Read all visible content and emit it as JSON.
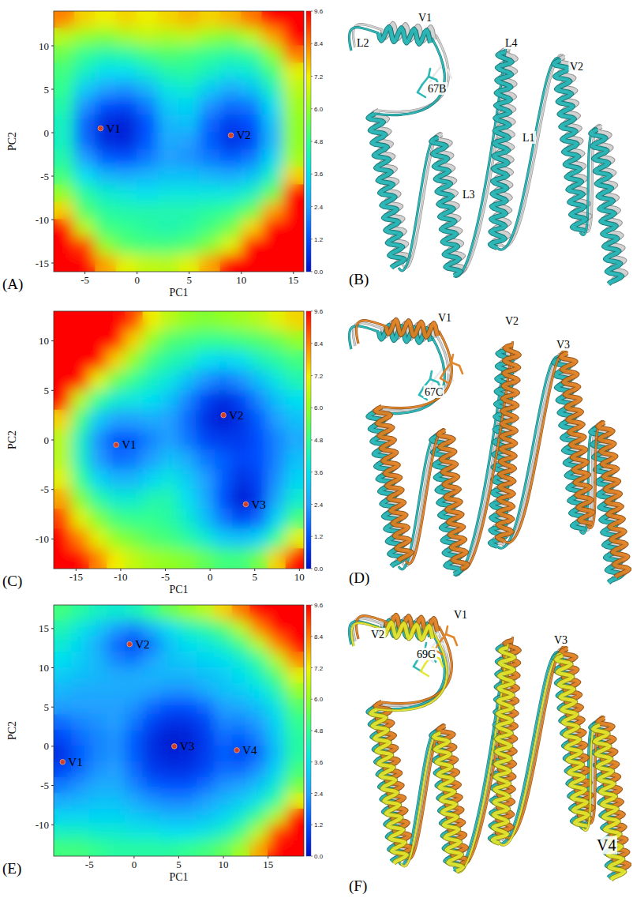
{
  "chart_data": [
    {
      "type": "heatmap",
      "title": "(A)",
      "x_label": "PC1",
      "y_label": "PC2",
      "xlim": [
        -8,
        16
      ],
      "ylim": [
        -16,
        14
      ],
      "xticks": [
        -5,
        0,
        5,
        10,
        15
      ],
      "yticks": [
        -15,
        -10,
        -5,
        0,
        5,
        10
      ],
      "x": [
        -7,
        -5,
        -3,
        -1,
        1,
        3,
        5,
        7,
        9,
        11,
        13,
        15
      ],
      "y": [
        13,
        11,
        9,
        7,
        5,
        3,
        1,
        -1,
        -3,
        -5,
        -7,
        -9,
        -11,
        -13,
        -15
      ],
      "z": [
        [
          8.4,
          7.5,
          7.2,
          7.5,
          7.2,
          7.5,
          7.8,
          7.5,
          7.8,
          8.5,
          9.6,
          9.6
        ],
        [
          6.5,
          6.0,
          5.8,
          6.2,
          6.5,
          6.3,
          6.5,
          6.0,
          5.8,
          6.5,
          8.0,
          9.6
        ],
        [
          5.5,
          4.8,
          4.5,
          4.6,
          5.0,
          5.2,
          5.0,
          4.8,
          4.6,
          4.8,
          6.0,
          8.5
        ],
        [
          5.0,
          4.2,
          3.6,
          3.6,
          4.0,
          4.5,
          4.6,
          4.2,
          3.8,
          4.0,
          5.0,
          7.0
        ],
        [
          4.8,
          3.2,
          2.4,
          2.2,
          2.8,
          3.8,
          4.0,
          3.2,
          2.6,
          3.0,
          4.2,
          6.5
        ],
        [
          4.5,
          2.2,
          1.2,
          1.0,
          1.8,
          3.2,
          3.4,
          2.2,
          1.6,
          1.8,
          3.5,
          6.2
        ],
        [
          4.2,
          1.5,
          0.4,
          0.3,
          1.2,
          2.8,
          3.0,
          1.5,
          0.8,
          1.2,
          3.0,
          6.0
        ],
        [
          4.2,
          1.6,
          0.5,
          0.4,
          1.3,
          2.6,
          2.4,
          1.4,
          0.6,
          1.0,
          2.8,
          6.0
        ],
        [
          4.5,
          2.4,
          1.4,
          1.2,
          1.8,
          2.4,
          2.2,
          1.8,
          1.4,
          1.8,
          3.4,
          6.2
        ],
        [
          5.0,
          3.6,
          2.8,
          2.6,
          2.8,
          3.0,
          3.0,
          2.8,
          2.6,
          3.0,
          4.2,
          7.5
        ],
        [
          6.0,
          4.6,
          4.0,
          3.8,
          3.6,
          3.8,
          3.8,
          3.8,
          3.8,
          4.2,
          5.5,
          9.6
        ],
        [
          7.5,
          5.2,
          4.6,
          4.4,
          4.4,
          4.4,
          4.4,
          4.6,
          4.8,
          5.5,
          8.0,
          9.6
        ],
        [
          9.6,
          6.5,
          5.0,
          4.8,
          4.6,
          4.4,
          4.6,
          5.0,
          5.6,
          7.5,
          9.6,
          9.6
        ],
        [
          9.6,
          9.0,
          6.0,
          5.2,
          5.0,
          5.0,
          5.2,
          5.8,
          7.0,
          9.6,
          9.6,
          9.6
        ],
        [
          9.6,
          9.6,
          8.0,
          7.0,
          6.6,
          6.5,
          7.0,
          8.0,
          9.6,
          9.6,
          9.6,
          9.6
        ]
      ],
      "colorbar_range": [
        0,
        9.6
      ],
      "colorbar_ticks": [
        {
          "value": 0,
          "label": "0.0"
        },
        1.2,
        2.4,
        3.6,
        4.8,
        {
          "value": 6,
          "label": "6.0"
        },
        7.2,
        8.4,
        9.6
      ],
      "annotations": [
        {
          "text": "V1",
          "x": -3.5,
          "y": 0.5
        },
        {
          "text": "V2",
          "x": 9,
          "y": -0.3
        }
      ]
    },
    {
      "type": "heatmap",
      "title": "(C)",
      "x_label": "PC1",
      "y_label": "PC2",
      "xlim": [
        -17.5,
        10.5
      ],
      "ylim": [
        -13,
        13
      ],
      "xticks": [
        -15,
        -10,
        -5,
        0,
        5,
        10
      ],
      "yticks": [
        -10,
        -5,
        0,
        5,
        10
      ],
      "x": [
        -16.5,
        -14.5,
        -12.5,
        -10.5,
        -8.5,
        -6.5,
        -4.5,
        -2.5,
        -0.5,
        1.5,
        3.5,
        5.5,
        7.5,
        9.5
      ],
      "y": [
        12,
        10,
        8,
        6,
        4,
        2,
        0,
        -2,
        -4,
        -6,
        -8,
        -10,
        -12
      ],
      "z": [
        [
          9.6,
          9.6,
          9.6,
          9.6,
          9.0,
          7.2,
          6.5,
          6.0,
          5.8,
          6.0,
          6.2,
          6.5,
          7.0,
          7.5
        ],
        [
          9.6,
          9.6,
          9.6,
          9.6,
          7.5,
          6.0,
          5.2,
          5.0,
          4.8,
          4.8,
          5.0,
          5.2,
          5.5,
          6.0
        ],
        [
          9.6,
          9.6,
          9.6,
          7.5,
          6.0,
          5.0,
          4.5,
          4.2,
          3.6,
          3.4,
          3.6,
          4.2,
          4.6,
          5.0
        ],
        [
          9.6,
          9.6,
          7.0,
          5.5,
          4.8,
          4.2,
          3.8,
          3.0,
          2.2,
          1.8,
          2.2,
          3.0,
          3.8,
          4.4
        ],
        [
          9.6,
          6.5,
          4.8,
          4.0,
          3.8,
          3.6,
          3.0,
          2.0,
          1.0,
          0.5,
          1.0,
          2.0,
          3.0,
          3.6
        ],
        [
          7.5,
          5.0,
          3.2,
          2.4,
          2.4,
          2.6,
          2.4,
          1.6,
          0.6,
          0.2,
          0.6,
          1.4,
          2.4,
          3.0
        ],
        [
          6.5,
          4.2,
          2.2,
          1.3,
          1.4,
          2.0,
          2.4,
          1.8,
          1.0,
          0.8,
          0.8,
          1.2,
          2.0,
          2.6
        ],
        [
          6.5,
          4.2,
          2.4,
          1.6,
          1.8,
          2.4,
          3.0,
          2.6,
          1.8,
          1.4,
          1.0,
          1.2,
          2.0,
          3.0
        ],
        [
          7.0,
          4.8,
          3.4,
          2.8,
          2.8,
          3.4,
          3.8,
          3.2,
          2.4,
          1.4,
          0.6,
          1.0,
          2.2,
          3.4
        ],
        [
          8.0,
          5.8,
          4.6,
          4.0,
          4.0,
          4.4,
          4.4,
          3.6,
          2.6,
          1.2,
          0.2,
          0.8,
          2.6,
          4.0
        ],
        [
          9.0,
          7.0,
          5.8,
          5.0,
          4.8,
          4.8,
          4.6,
          4.0,
          3.0,
          1.8,
          1.0,
          1.6,
          3.4,
          5.0
        ],
        [
          9.6,
          8.4,
          7.0,
          6.0,
          5.6,
          5.2,
          5.0,
          4.6,
          4.0,
          3.2,
          3.0,
          3.4,
          4.8,
          7.0
        ],
        [
          9.6,
          9.6,
          8.4,
          7.2,
          6.6,
          6.2,
          6.0,
          5.8,
          5.4,
          5.0,
          5.0,
          5.6,
          7.5,
          9.6
        ]
      ],
      "colorbar_range": [
        0,
        9.6
      ],
      "colorbar_ticks": [
        {
          "value": 0,
          "label": "0.0"
        },
        1.2,
        2.4,
        3.6,
        4.8,
        {
          "value": 6,
          "label": "6.0"
        },
        7.2,
        8.4,
        9.6
      ],
      "annotations": [
        {
          "text": "V1",
          "x": -10.5,
          "y": -0.5
        },
        {
          "text": "V2",
          "x": 1.5,
          "y": 2.5
        },
        {
          "text": "V3",
          "x": 4,
          "y": -6.5
        }
      ]
    },
    {
      "type": "heatmap",
      "title": "(E)",
      "x_label": "PC1",
      "y_label": "PC2",
      "xlim": [
        -9,
        19
      ],
      "ylim": [
        -14,
        18
      ],
      "xticks": [
        -5,
        0,
        5,
        10,
        15
      ],
      "yticks": [
        -10,
        -5,
        0,
        5,
        10,
        15
      ],
      "x": [
        -8,
        -6,
        -4,
        -2,
        0,
        2,
        4,
        6,
        8,
        10,
        12,
        14,
        16,
        18
      ],
      "y": [
        17,
        15,
        13,
        11,
        9,
        7,
        5,
        3,
        1,
        -1,
        -3,
        -5,
        -7,
        -9,
        -11,
        -13
      ],
      "z": [
        [
          5.0,
          4.6,
          4.2,
          4.0,
          4.2,
          4.8,
          5.5,
          6.0,
          6.5,
          7.5,
          8.5,
          9.6,
          9.6,
          9.6
        ],
        [
          4.4,
          3.8,
          3.2,
          2.4,
          2.0,
          2.8,
          3.6,
          4.2,
          4.6,
          5.2,
          6.5,
          8.4,
          9.6,
          9.6
        ],
        [
          4.0,
          3.4,
          2.6,
          1.6,
          1.0,
          1.8,
          3.0,
          3.6,
          3.8,
          4.2,
          5.0,
          6.5,
          8.4,
          9.6
        ],
        [
          3.6,
          3.2,
          2.8,
          2.0,
          1.8,
          2.4,
          3.0,
          3.2,
          3.4,
          3.6,
          4.0,
          4.8,
          6.5,
          8.4
        ],
        [
          3.2,
          3.0,
          2.8,
          2.6,
          2.6,
          2.8,
          2.8,
          2.8,
          3.0,
          3.2,
          3.6,
          4.2,
          5.2,
          7.0
        ],
        [
          2.8,
          2.6,
          2.6,
          2.6,
          2.6,
          2.4,
          2.2,
          2.2,
          2.6,
          3.0,
          3.2,
          3.6,
          4.4,
          6.0
        ],
        [
          2.4,
          2.4,
          2.4,
          2.4,
          2.2,
          1.6,
          1.2,
          1.2,
          1.6,
          2.4,
          2.6,
          3.0,
          3.8,
          5.2
        ],
        [
          1.6,
          2.0,
          2.2,
          2.4,
          1.8,
          1.0,
          0.6,
          0.6,
          1.0,
          2.0,
          2.0,
          2.4,
          3.4,
          4.8
        ],
        [
          1.0,
          1.6,
          2.0,
          2.2,
          1.4,
          0.6,
          0.2,
          0.3,
          0.8,
          1.6,
          1.4,
          2.0,
          3.2,
          4.6
        ],
        [
          0.6,
          1.4,
          2.0,
          2.2,
          1.4,
          0.6,
          0.3,
          0.4,
          0.8,
          1.4,
          1.0,
          1.6,
          3.0,
          4.6
        ],
        [
          1.0,
          1.6,
          2.2,
          2.4,
          1.6,
          0.8,
          0.6,
          0.6,
          1.0,
          1.6,
          1.6,
          2.2,
          3.4,
          5.0
        ],
        [
          1.8,
          2.2,
          2.6,
          2.6,
          2.0,
          1.4,
          1.2,
          1.2,
          1.6,
          2.2,
          2.4,
          3.0,
          4.0,
          5.6
        ],
        [
          2.6,
          2.8,
          3.0,
          3.0,
          2.6,
          2.2,
          2.0,
          2.0,
          2.4,
          2.8,
          3.2,
          3.8,
          4.8,
          7.0
        ],
        [
          3.4,
          3.4,
          3.4,
          3.4,
          3.2,
          3.0,
          2.8,
          2.8,
          3.0,
          3.4,
          4.0,
          5.0,
          6.5,
          9.6
        ],
        [
          4.2,
          4.2,
          4.0,
          4.0,
          3.8,
          3.8,
          3.6,
          3.6,
          3.8,
          4.2,
          5.0,
          6.5,
          9.0,
          9.6
        ],
        [
          5.0,
          5.0,
          4.8,
          4.6,
          4.6,
          4.6,
          4.6,
          4.8,
          5.0,
          5.4,
          6.2,
          8.0,
          9.6,
          9.6
        ]
      ],
      "colorbar_range": [
        0,
        9.6
      ],
      "colorbar_ticks": [
        {
          "value": 0,
          "label": "0.0"
        },
        1.2,
        2.4,
        3.6,
        4.8,
        {
          "value": 6,
          "label": "6.0"
        },
        7.2,
        8.4,
        9.6
      ],
      "annotations": [
        {
          "text": "V1",
          "x": -8,
          "y": -2
        },
        {
          "text": "V2",
          "x": -0.5,
          "y": 13
        },
        {
          "text": "V3",
          "x": 4.5,
          "y": 0
        },
        {
          "text": "V4",
          "x": 11.5,
          "y": -0.5
        }
      ]
    }
  ],
  "structures": [
    {
      "letter": "(B)",
      "labels": [
        "V1",
        "L2",
        "L4",
        "V2",
        "67B",
        "L1",
        "L3"
      ]
    },
    {
      "letter": "(D)",
      "labels": [
        "V1",
        "V2",
        "V3",
        "67C"
      ]
    },
    {
      "letter": "(F)",
      "labels": [
        "V1",
        "V2",
        "V3",
        "69G",
        "V4"
      ]
    }
  ]
}
